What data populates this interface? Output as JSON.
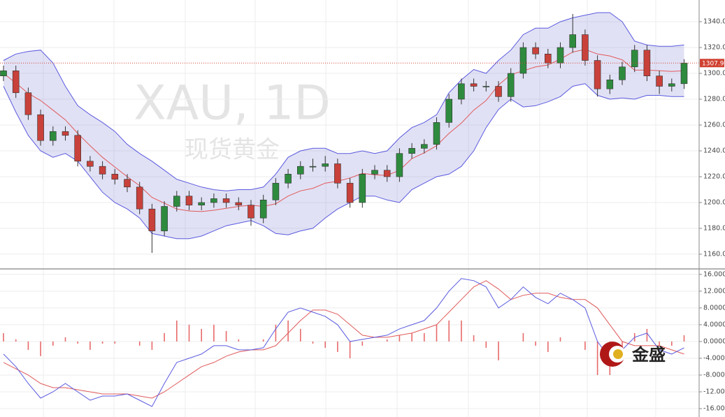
{
  "logo": "金盛",
  "chart_data": [
    {
      "type": "candlestick",
      "watermark": "XAU, 1D",
      "subtitle": "现货黄金",
      "open": [
        1298,
        1302,
        1285,
        1268,
        1248,
        1255,
        1252,
        1232,
        1228,
        1222,
        1218,
        1212,
        1195,
        1178,
        1197,
        1205,
        1198,
        1200,
        1203,
        1200,
        1198,
        1188,
        1202,
        1215,
        1222,
        1228,
        1228,
        1230,
        1215,
        1200,
        1222,
        1225,
        1220,
        1238,
        1242,
        1245,
        1262,
        1280,
        1292,
        1290,
        1290,
        1282,
        1300,
        1320,
        1315,
        1308,
        1320,
        1330,
        1310,
        1288,
        1295,
        1305,
        1318,
        1298,
        1290,
        1292
      ],
      "high": [
        1306,
        1306,
        1289,
        1272,
        1259,
        1259,
        1256,
        1236,
        1232,
        1226,
        1222,
        1216,
        1199,
        1201,
        1209,
        1209,
        1204,
        1207,
        1207,
        1204,
        1202,
        1206,
        1219,
        1226,
        1232,
        1234,
        1236,
        1234,
        1219,
        1226,
        1229,
        1229,
        1242,
        1246,
        1249,
        1266,
        1284,
        1296,
        1296,
        1294,
        1294,
        1304,
        1324,
        1324,
        1319,
        1324,
        1346,
        1334,
        1314,
        1299,
        1309,
        1322,
        1322,
        1302,
        1296,
        1311
      ],
      "low": [
        1294,
        1281,
        1264,
        1244,
        1244,
        1248,
        1228,
        1224,
        1218,
        1214,
        1208,
        1191,
        1161,
        1174,
        1193,
        1194,
        1194,
        1196,
        1196,
        1194,
        1182,
        1184,
        1198,
        1211,
        1218,
        1224,
        1224,
        1211,
        1196,
        1196,
        1218,
        1216,
        1216,
        1234,
        1238,
        1241,
        1258,
        1276,
        1286,
        1286,
        1278,
        1278,
        1296,
        1311,
        1304,
        1304,
        1316,
        1306,
        1282,
        1284,
        1291,
        1301,
        1294,
        1284,
        1286,
        1288
      ],
      "close": [
        1302,
        1285,
        1268,
        1248,
        1255,
        1252,
        1232,
        1228,
        1222,
        1218,
        1212,
        1195,
        1178,
        1197,
        1205,
        1198,
        1200,
        1203,
        1200,
        1198,
        1188,
        1202,
        1215,
        1222,
        1228,
        1228,
        1230,
        1215,
        1200,
        1222,
        1225,
        1220,
        1238,
        1242,
        1245,
        1262,
        1280,
        1292,
        1290,
        1290,
        1282,
        1300,
        1320,
        1315,
        1308,
        1320,
        1330,
        1310,
        1288,
        1295,
        1305,
        1318,
        1298,
        1290,
        1292,
        1307.99
      ],
      "up_color": "#2e8b3e",
      "down_color": "#c8413a",
      "bands": {
        "color": "#5a5ae0",
        "fill": "rgba(120,120,210,0.22)",
        "middle_color": "#e05a5a",
        "upper": [
          1310,
          1315,
          1317,
          1318,
          1308,
          1290,
          1275,
          1268,
          1262,
          1255,
          1245,
          1238,
          1232,
          1225,
          1218,
          1215,
          1212,
          1210,
          1209,
          1210,
          1210,
          1212,
          1222,
          1235,
          1240,
          1242,
          1242,
          1238,
          1238,
          1240,
          1238,
          1240,
          1250,
          1258,
          1262,
          1268,
          1285,
          1295,
          1303,
          1300,
          1310,
          1318,
          1330,
          1335,
          1335,
          1340,
          1343,
          1345,
          1347,
          1347,
          1340,
          1325,
          1322,
          1321,
          1321,
          1322
        ],
        "middle": [
          1300,
          1292.5,
          1284.5,
          1279,
          1271.5,
          1264,
          1253.5,
          1244,
          1235,
          1227.5,
          1220,
          1213,
          1204,
          1199.5,
          1195,
          1193.5,
          1193,
          1194,
          1195.5,
          1197,
          1198,
          1197,
          1199,
          1205,
          1209,
          1211,
          1215,
          1216.5,
          1219,
          1222.5,
          1221.5,
          1221,
          1225,
          1234,
          1238.5,
          1244,
          1253.5,
          1261.5,
          1271.5,
          1279,
          1291,
          1299,
          1302,
          1305,
          1306.5,
          1311,
          1316.5,
          1318.5,
          1315,
          1313.5,
          1310.5,
          1302.5,
          1302.5,
          1302,
          1301.5,
          1302
        ],
        "lower": [
          1290,
          1270,
          1252,
          1240,
          1235,
          1238,
          1232,
          1220,
          1208,
          1200,
          1195,
          1188,
          1176,
          1174,
          1172,
          1172,
          1174,
          1178,
          1182,
          1184,
          1186,
          1182,
          1176,
          1175,
          1178,
          1180,
          1188,
          1195,
          1200,
          1205,
          1205,
          1202,
          1200,
          1210,
          1215,
          1220,
          1222,
          1228,
          1240,
          1258,
          1272,
          1280,
          1274,
          1275,
          1278,
          1282,
          1290,
          1292,
          1283,
          1280,
          1281,
          1280,
          1283,
          1283,
          1282,
          1282
        ]
      },
      "ylim": [
        1148.6,
        1356.8
      ],
      "yticks": [
        {
          "value": 1160,
          "label": "1160.00"
        },
        {
          "value": 1180,
          "label": "1180.00"
        },
        {
          "value": 1200,
          "label": "1200.00"
        },
        {
          "value": 1220,
          "label": "1220.00"
        },
        {
          "value": 1240,
          "label": "1240.00"
        },
        {
          "value": 1260,
          "label": "1260.00"
        },
        {
          "value": 1280,
          "label": "1280.00"
        },
        {
          "value": 1300,
          "label": "1300.00"
        },
        {
          "value": 1320,
          "label": "1320.00"
        },
        {
          "value": 1340,
          "label": "1340.00"
        }
      ],
      "grid": true
    },
    {
      "type": "macd",
      "macd": {
        "color": "#5a5ae0",
        "values": [
          -3,
          -6,
          -10,
          -13.5,
          -12,
          -10,
          -12,
          -14,
          -13,
          -13,
          -12.5,
          -14,
          -15.5,
          -10,
          -5,
          -4,
          -3,
          -1,
          -1,
          -2,
          -2,
          -1.5,
          3,
          7,
          8,
          7,
          6,
          4,
          0,
          0.5,
          1,
          1.5,
          3,
          4,
          5,
          8,
          12,
          15,
          14.5,
          13,
          8,
          10,
          13,
          10.5,
          9,
          11.5,
          10,
          8,
          0,
          -4,
          -2,
          1,
          2,
          -2,
          -3,
          -1.5
        ]
      },
      "signal": {
        "color": "#e05a5a",
        "values": [
          -5,
          -6.5,
          -8,
          -10,
          -11,
          -11,
          -11.5,
          -12,
          -12.5,
          -12.5,
          -12.5,
          -13,
          -13.5,
          -12,
          -10,
          -8,
          -6,
          -5,
          -3.5,
          -2.5,
          -2,
          -2,
          -1,
          2,
          5,
          7.5,
          7.5,
          6.5,
          4,
          1.5,
          1,
          1,
          1.5,
          2,
          3,
          4,
          7,
          10,
          13,
          14.5,
          12.5,
          10,
          11,
          11.5,
          11.5,
          10.5,
          10,
          10,
          8,
          4,
          0,
          -1,
          -1,
          -1,
          -2,
          -3
        ]
      },
      "histogram": {
        "color": "#e86a6a",
        "values": [
          2,
          0.5,
          -2,
          -3.5,
          -1,
          1,
          -0.5,
          -2,
          -0.5,
          -0.5,
          0,
          -1,
          -2,
          2,
          5,
          4,
          3,
          4,
          2.5,
          0.5,
          0,
          0.5,
          4,
          5,
          3,
          -0.5,
          -1.5,
          -2.5,
          -4,
          -1,
          0,
          0.5,
          1.5,
          2,
          2,
          4,
          5,
          5,
          1.5,
          -1.5,
          -4.5,
          0,
          2,
          -1,
          -2.5,
          1,
          0,
          -2,
          -8,
          -8,
          -2,
          2,
          3,
          -1,
          -1,
          1.5
        ]
      },
      "ylim": [
        -18,
        17.3
      ],
      "yticks": [
        {
          "value": 16,
          "label": "16.0000"
        },
        {
          "value": 12,
          "label": "12.0000"
        },
        {
          "value": 8,
          "label": "8.0000"
        },
        {
          "value": 4,
          "label": "4.0000"
        },
        {
          "value": 0,
          "label": "0.0000"
        },
        {
          "value": -4,
          "label": "-4.0000"
        },
        {
          "value": -8,
          "label": "-8.0000"
        },
        {
          "value": -12,
          "label": "-12.0000"
        },
        {
          "value": -16,
          "label": "-16.0000"
        }
      ],
      "grid": true
    }
  ]
}
